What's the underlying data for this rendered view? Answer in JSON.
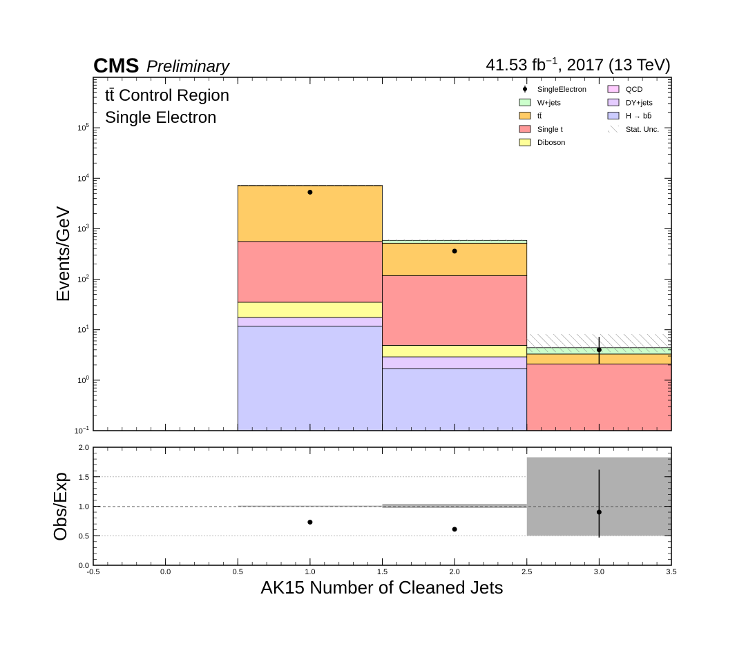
{
  "header": {
    "experiment": "CMS",
    "status": "Preliminary",
    "lumi_prefix": "41.53 fb",
    "lumi_exp": "−1",
    "lumi_suffix": ", 2017 (13 TeV)"
  },
  "region": {
    "line1": "tt̄ Control Region",
    "line2": "Single Electron"
  },
  "colors": {
    "W+jets": "#ccffcc",
    "ttbar": "#ffcc66",
    "Single t": "#ff9999",
    "Diboson": "#ffff99",
    "QCD": "#ffccff",
    "DY+jets": "#e5ccff",
    "Hbb": "#ccccff",
    "ratio_band": "#b0b0b0"
  },
  "legend": [
    {
      "key": "data",
      "label": "SingleElectron",
      "kind": "marker"
    },
    {
      "key": "QCD",
      "label": "QCD",
      "kind": "box"
    },
    {
      "key": "W+jets",
      "label": "W+jets",
      "kind": "box"
    },
    {
      "key": "DY+jets",
      "label": "DY+jets",
      "kind": "box"
    },
    {
      "key": "ttbar",
      "label": "tt̄",
      "kind": "box"
    },
    {
      "key": "Hbb",
      "label": "H → bb̄",
      "kind": "box"
    },
    {
      "key": "Single t",
      "label": "Single t",
      "kind": "box"
    },
    {
      "key": "unc",
      "label": "Stat. Unc.",
      "kind": "hatch"
    },
    {
      "key": "Diboson",
      "label": "Diboson",
      "kind": "box"
    }
  ],
  "chart_data": {
    "type": "bar",
    "stacked": true,
    "log_y": true,
    "xlabel": "AK15 Number of Cleaned Jets",
    "ylabel": "Events/GeV",
    "ratio_ylabel": "Obs/Exp",
    "xlim": [
      -0.5,
      3.5
    ],
    "ylim": [
      0.1,
      1000000
    ],
    "ratio_ylim": [
      0.0,
      2.0
    ],
    "x_ticks": [
      "-0.5",
      "0.0",
      "0.5",
      "1.0",
      "1.5",
      "2.0",
      "2.5",
      "3.0",
      "3.5"
    ],
    "x_tick_values": [
      -0.5,
      0.0,
      0.5,
      1.0,
      1.5,
      2.0,
      2.5,
      3.0,
      3.5
    ],
    "y_ticks": [
      {
        "v": 0.1,
        "base": "10",
        "exp": "−1"
      },
      {
        "v": 1,
        "base": "10",
        "exp": "0"
      },
      {
        "v": 10,
        "base": "10",
        "exp": "1"
      },
      {
        "v": 100,
        "base": "10",
        "exp": "2"
      },
      {
        "v": 1000,
        "base": "10",
        "exp": "3"
      },
      {
        "v": 10000,
        "base": "10",
        "exp": "4"
      },
      {
        "v": 100000,
        "base": "10",
        "exp": "5"
      }
    ],
    "ratio_ticks": [
      "0.0",
      "0.5",
      "1.0",
      "1.5",
      "2.0"
    ],
    "ratio_tick_values": [
      0.0,
      0.5,
      1.0,
      1.5,
      2.0
    ],
    "bins": [
      {
        "low": 0.5,
        "high": 1.5,
        "center": 1.0
      },
      {
        "low": 1.5,
        "high": 2.5,
        "center": 2.0
      },
      {
        "low": 2.5,
        "high": 3.5,
        "center": 3.0
      }
    ],
    "stack_order": [
      "Hbb",
      "DY+jets",
      "QCD",
      "Diboson",
      "Single t",
      "ttbar",
      "W+jets"
    ],
    "series": [
      {
        "name": "H → bb̄",
        "key": "Hbb",
        "values": [
          11.8,
          1.7,
          0.0
        ]
      },
      {
        "name": "DY+jets",
        "key": "DY+jets",
        "values": [
          5.7,
          1.2,
          0.0
        ]
      },
      {
        "name": "QCD",
        "key": "QCD",
        "values": [
          0.0,
          0.0,
          0.0
        ]
      },
      {
        "name": "Diboson",
        "key": "Diboson",
        "values": [
          17.5,
          2.0,
          0.0
        ]
      },
      {
        "name": "Single t",
        "key": "Single t",
        "values": [
          525.0,
          113.0,
          2.1
        ]
      },
      {
        "name": "tt̄",
        "key": "ttbar",
        "values": [
          6590.0,
          400.0,
          1.2
        ]
      },
      {
        "name": "W+jets",
        "key": "W+jets",
        "values": [
          60.0,
          70.0,
          1.1
        ]
      }
    ],
    "data": {
      "name": "SingleElectron",
      "values": [
        5300.0,
        360.0,
        4.0
      ],
      "err_low": [
        73.0,
        19.0,
        1.9
      ],
      "err_high": [
        73.0,
        19.0,
        3.2
      ]
    },
    "stat_unc": {
      "low": [
        7130.0,
        565.0,
        3.6
      ],
      "high": [
        7330.0,
        615.0,
        8.2
      ]
    },
    "ratio": {
      "values": [
        0.73,
        0.61,
        0.9
      ],
      "err_low": [
        0.01,
        0.03,
        0.43
      ],
      "err_high": [
        0.01,
        0.03,
        0.72
      ],
      "band_low": [
        0.99,
        0.97,
        0.5
      ],
      "band_high": [
        1.01,
        1.04,
        1.83
      ]
    }
  }
}
